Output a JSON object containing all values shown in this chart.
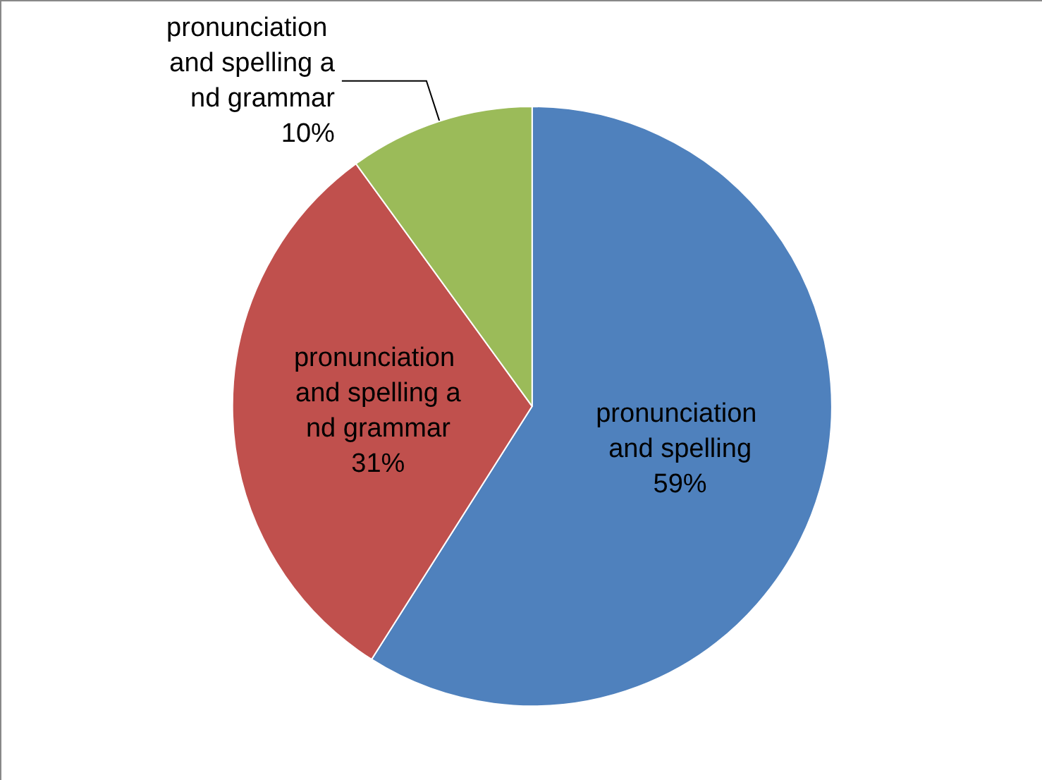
{
  "chart_data": {
    "type": "pie",
    "categories": [
      "pronunciation and spelling",
      "pronunciation and spelling and grammar",
      "pronunciation and spelling and grammar"
    ],
    "values": [
      59,
      31,
      10
    ],
    "value_labels": [
      "59%",
      "31%",
      "10%"
    ],
    "colors": [
      "#4f81bd",
      "#c0504d",
      "#9bbb59"
    ],
    "legend": false
  }
}
